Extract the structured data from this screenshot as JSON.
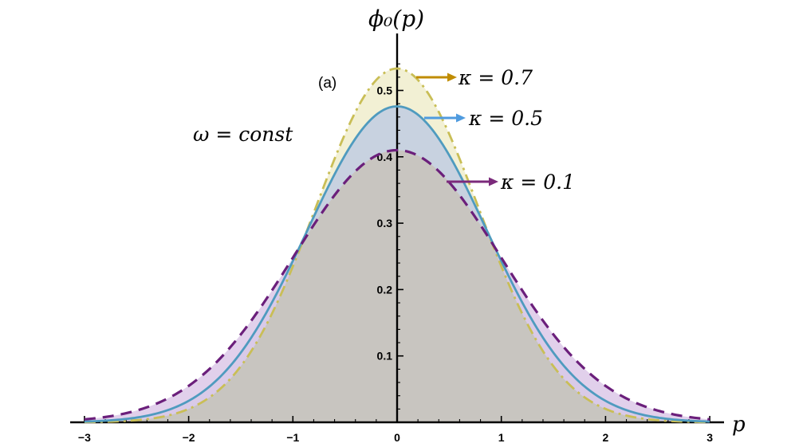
{
  "chart_data": {
    "type": "area",
    "panel_label": "(a)",
    "xlabel": "p",
    "ylabel": "ϕ₀(p)",
    "annotation": "ω = const",
    "xlim": [
      -3.1,
      3.1
    ],
    "ylim": [
      0,
      0.55
    ],
    "x_ticks": [
      -3,
      -2,
      -1,
      0,
      1,
      2,
      3
    ],
    "x_tick_labels": [
      "−3",
      "−2",
      "−1",
      "0",
      "1",
      "2",
      "3"
    ],
    "y_ticks": [
      0.1,
      0.2,
      0.3,
      0.4,
      0.5
    ],
    "y_tick_labels": [
      "0.1",
      "0.2",
      "0.3",
      "0.4",
      "0.5"
    ],
    "grid": false,
    "x": [
      -3,
      -2.5,
      -2,
      -1.5,
      -1,
      -0.5,
      0,
      0.5,
      1,
      1.5,
      2,
      2.5,
      3
    ],
    "series": [
      {
        "name": "κ = 0.1",
        "label_text": "κ = 0.1",
        "line_style": "dashed",
        "color": "#6b1f7b",
        "fill": "#dcc8e8",
        "values": [
          0.003,
          0.015,
          0.053,
          0.135,
          0.248,
          0.36,
          0.41,
          0.36,
          0.248,
          0.135,
          0.053,
          0.015,
          0.003
        ]
      },
      {
        "name": "κ = 0.5",
        "label_text": "κ = 0.5",
        "line_style": "solid",
        "color": "#4f9bbf",
        "fill": "#b9c8e4",
        "values": [
          0.001,
          0.008,
          0.036,
          0.113,
          0.243,
          0.395,
          0.476,
          0.395,
          0.243,
          0.113,
          0.036,
          0.008,
          0.001
        ]
      },
      {
        "name": "κ = 0.7",
        "label_text": "κ = 0.7",
        "line_style": "dashdot",
        "color": "#c9be56",
        "fill": "#f2f0d4",
        "values": [
          0.0003,
          0.005,
          0.026,
          0.097,
          0.235,
          0.421,
          0.533,
          0.421,
          0.235,
          0.097,
          0.026,
          0.005,
          0.0003
        ]
      }
    ],
    "arrow_colors": {
      "κ = 0.7": "#c08c00",
      "κ = 0.5": "#4f9bdf",
      "κ = 0.1": "#7b2a7b"
    },
    "overlap_fill": "#c8c5c0"
  }
}
